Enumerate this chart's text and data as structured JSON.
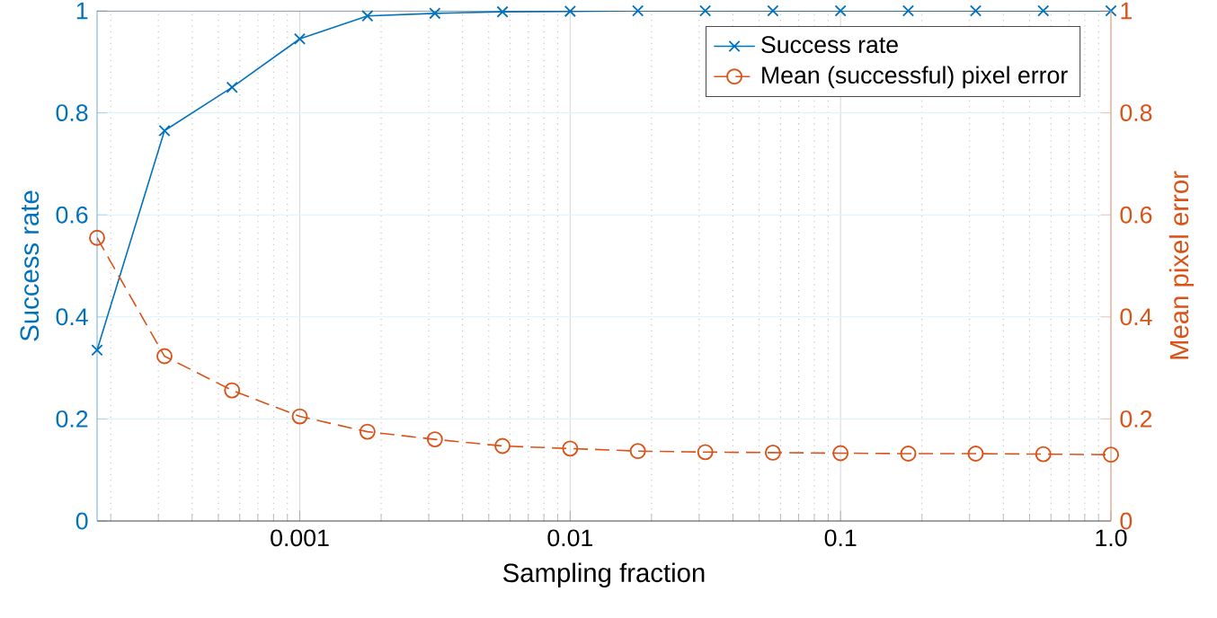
{
  "chart_data": {
    "type": "line",
    "xlabel": "Sampling fraction",
    "ylabel": "Success rate",
    "y2label": "Mean pixel error",
    "x": [
      0.000178,
      0.000316,
      0.000562,
      0.001,
      0.00178,
      0.00316,
      0.00562,
      0.01,
      0.0178,
      0.0316,
      0.0562,
      0.1,
      0.178,
      0.316,
      0.562,
      1.0
    ],
    "series": [
      {
        "name": "Success rate",
        "color": "#0072bd",
        "marker": "cross",
        "line_style": "solid",
        "values": [
          0.335,
          0.765,
          0.85,
          0.945,
          0.99,
          0.995,
          0.998,
          0.999,
          1,
          1,
          1,
          1,
          1,
          1,
          1,
          1
        ]
      },
      {
        "name": "Mean (successful) pixel error",
        "color": "#d95319",
        "marker": "circle",
        "line_style": "dashed",
        "axis": "y2",
        "values": [
          0.555,
          0.323,
          0.256,
          0.205,
          0.175,
          0.16,
          0.147,
          0.142,
          0.137,
          0.135,
          0.134,
          0.133,
          0.132,
          0.132,
          0.131,
          0.13
        ]
      }
    ],
    "log": "x",
    "xlim": [
      0.000178,
      1
    ],
    "xticks": [
      0.001,
      0.01,
      0.1,
      {
        "value": 1,
        "label": "1.0"
      }
    ],
    "ylim": [
      0,
      1
    ],
    "yticks": [
      0,
      0.2,
      0.4,
      0.6,
      0.8,
      1
    ],
    "y2lim": [
      0,
      1
    ],
    "y2ticks": [
      0,
      0.2,
      0.4,
      0.6,
      0.8,
      1
    ],
    "grid": true,
    "legend": "top right"
  }
}
